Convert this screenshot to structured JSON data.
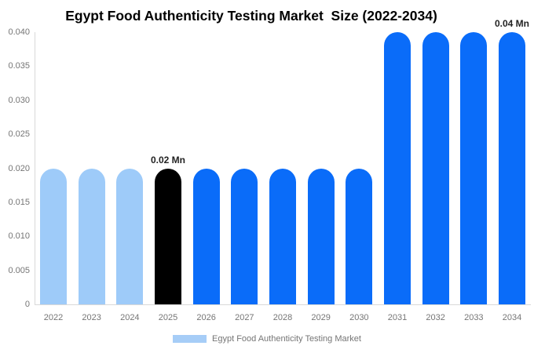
{
  "chart_data": {
    "type": "bar",
    "title": "Egypt Food Authenticity Testing Market  Size (2022-2034)",
    "unit": "Mn",
    "categories": [
      "2022",
      "2023",
      "2024",
      "2025",
      "2026",
      "2027",
      "2028",
      "2029",
      "2030",
      "2031",
      "2032",
      "2033",
      "2034"
    ],
    "values": [
      0.02,
      0.02,
      0.02,
      0.02,
      0.02,
      0.02,
      0.02,
      0.02,
      0.02,
      0.04,
      0.04,
      0.04,
      0.04
    ],
    "bar_colors": [
      "#9ECBF9",
      "#9ECBF9",
      "#9ECBF9",
      "#000000",
      "#0A6CF9",
      "#0A6CF9",
      "#0A6CF9",
      "#0A6CF9",
      "#0A6CF9",
      "#0A6CF9",
      "#0A6CF9",
      "#0A6CF9",
      "#0A6CF9"
    ],
    "ylim": [
      0,
      0.04
    ],
    "yticks": [
      0,
      0.005,
      0.01,
      0.015,
      0.02,
      0.025,
      0.03,
      0.035,
      0.04
    ],
    "ytick_labels": [
      "0",
      "0.005",
      "0.010",
      "0.015",
      "0.020",
      "0.025",
      "0.030",
      "0.035",
      "0.040"
    ],
    "xlabel": "",
    "ylabel": "",
    "grid": false,
    "legend_position": "bottom",
    "legend": [
      {
        "label": "Egypt Food Authenticity Testing Market",
        "color": "#A6CDF7"
      }
    ],
    "data_labels": [
      {
        "index": 3,
        "text": "0.02 Mn"
      },
      {
        "index": 12,
        "text": "0.04 Mn"
      }
    ],
    "colors": {
      "axis_line": "#D9D9D9",
      "tick_text": "#757575",
      "data_label_text": "#222222",
      "title_text": "#000000"
    }
  }
}
